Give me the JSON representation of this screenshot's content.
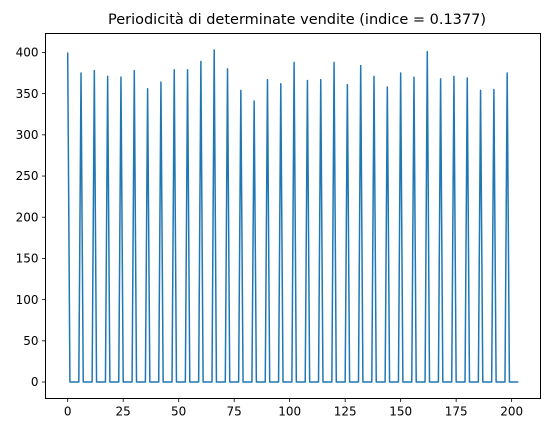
{
  "chart_data": {
    "type": "line",
    "title": "Periodicità di determinate vendite (indice = 0.1377)",
    "xlabel": "",
    "ylabel": "",
    "xlim": [
      -10,
      213
    ],
    "ylim": [
      -20,
      423
    ],
    "x_ticks": [
      0,
      25,
      50,
      75,
      100,
      125,
      150,
      175,
      200
    ],
    "y_ticks": [
      0,
      50,
      100,
      150,
      200,
      250,
      300,
      350,
      400
    ],
    "grid": false,
    "line_color": "#1f77b4",
    "series": [
      {
        "peak_x": [
          0,
          6,
          12,
          18,
          24,
          30,
          36,
          42,
          48,
          54,
          60,
          66,
          72,
          78,
          84,
          90,
          96,
          102,
          108,
          114,
          120,
          126,
          132,
          138,
          144,
          150,
          156,
          162,
          168,
          174,
          180,
          186,
          192,
          198
        ],
        "peak_y": [
          400,
          375,
          378,
          371,
          370,
          378,
          356,
          364,
          379,
          379,
          389,
          403,
          380,
          354,
          341,
          367,
          362,
          388,
          366,
          367,
          388,
          361,
          384,
          371,
          358,
          375,
          370,
          401,
          368,
          371,
          369,
          354,
          355,
          375
        ],
        "baseline_y": 0,
        "x_end": 203
      }
    ]
  }
}
